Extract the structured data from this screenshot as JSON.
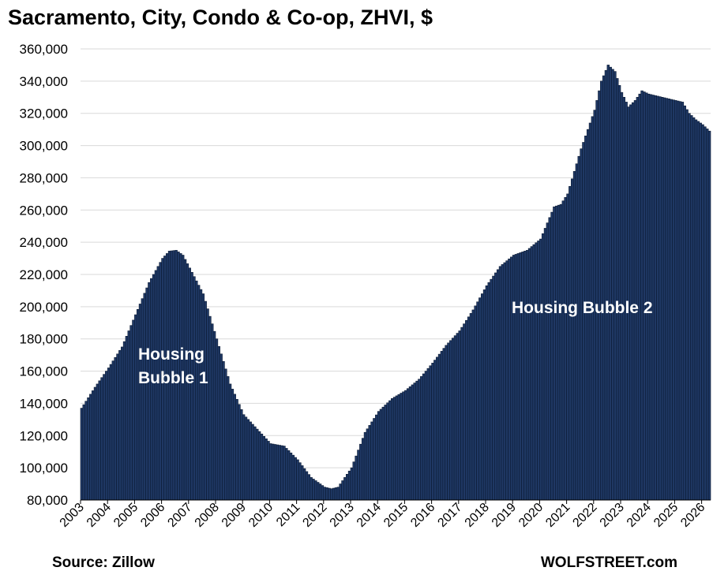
{
  "chart_data": {
    "type": "bar",
    "title": "Sacramento, City, Condo & Co-op, ZHVI, $",
    "xlabel": "",
    "ylabel": "",
    "ylim": [
      80000,
      360000
    ],
    "yticks": [
      "360,000",
      "340,000",
      "320,000",
      "300,000",
      "280,000",
      "260,000",
      "240,000",
      "220,000",
      "200,000",
      "180,000",
      "160,000",
      "140,000",
      "120,000",
      "100,000",
      "80,000"
    ],
    "xticks": [
      "2003",
      "2004",
      "2005",
      "2006",
      "2007",
      "2008",
      "2009",
      "2010",
      "2011",
      "2012",
      "2013",
      "2014",
      "2015",
      "2016",
      "2017",
      "2018",
      "2019",
      "2020",
      "2021",
      "2022",
      "2023",
      "2024",
      "2025",
      "2026"
    ],
    "grid": true,
    "legend": "none",
    "bar_color": "#1f3864",
    "start": "2003-01",
    "frequency": "monthly",
    "anchors": [
      [
        "2003-01",
        137000
      ],
      [
        "2003-07",
        150000
      ],
      [
        "2004-01",
        162000
      ],
      [
        "2004-07",
        175000
      ],
      [
        "2005-01",
        195000
      ],
      [
        "2005-07",
        215000
      ],
      [
        "2006-01",
        230000
      ],
      [
        "2006-04",
        234500
      ],
      [
        "2006-07",
        235000
      ],
      [
        "2006-10",
        232000
      ],
      [
        "2007-01",
        224000
      ],
      [
        "2007-07",
        208000
      ],
      [
        "2008-01",
        180000
      ],
      [
        "2008-07",
        152000
      ],
      [
        "2009-01",
        133000
      ],
      [
        "2009-07",
        124000
      ],
      [
        "2010-01",
        115000
      ],
      [
        "2010-07",
        113500
      ],
      [
        "2011-01",
        105000
      ],
      [
        "2011-07",
        94000
      ],
      [
        "2012-01",
        88000
      ],
      [
        "2012-04",
        87000
      ],
      [
        "2012-07",
        88000
      ],
      [
        "2013-01",
        100000
      ],
      [
        "2013-07",
        122000
      ],
      [
        "2014-01",
        135000
      ],
      [
        "2014-07",
        143000
      ],
      [
        "2015-01",
        148000
      ],
      [
        "2015-07",
        155000
      ],
      [
        "2016-01",
        165000
      ],
      [
        "2016-07",
        176000
      ],
      [
        "2017-01",
        185000
      ],
      [
        "2017-07",
        198000
      ],
      [
        "2018-01",
        213000
      ],
      [
        "2018-07",
        225000
      ],
      [
        "2019-01",
        232000
      ],
      [
        "2019-07",
        235000
      ],
      [
        "2020-01",
        242000
      ],
      [
        "2020-07",
        262000
      ],
      [
        "2020-10",
        263500
      ],
      [
        "2021-01",
        270000
      ],
      [
        "2021-07",
        298000
      ],
      [
        "2022-01",
        322000
      ],
      [
        "2022-04",
        340000
      ],
      [
        "2022-07",
        350000
      ],
      [
        "2022-10",
        346000
      ],
      [
        "2023-01",
        333000
      ],
      [
        "2023-04",
        324000
      ],
      [
        "2023-07",
        328000
      ],
      [
        "2023-10",
        334000
      ],
      [
        "2024-01",
        332000
      ],
      [
        "2024-07",
        330000
      ],
      [
        "2025-01",
        328000
      ],
      [
        "2025-04",
        327000
      ],
      [
        "2025-07",
        320000
      ],
      [
        "2025-10",
        316000
      ],
      [
        "2026-01",
        313000
      ],
      [
        "2026-04",
        309000
      ]
    ],
    "annotations": [
      {
        "text": "Housing"
      },
      {
        "text": "Bubble 1"
      },
      {
        "text": "Housing Bubble 2"
      }
    ]
  },
  "footer": {
    "source": "Source: Zillow",
    "brand": "WOLFSTREET.com"
  }
}
